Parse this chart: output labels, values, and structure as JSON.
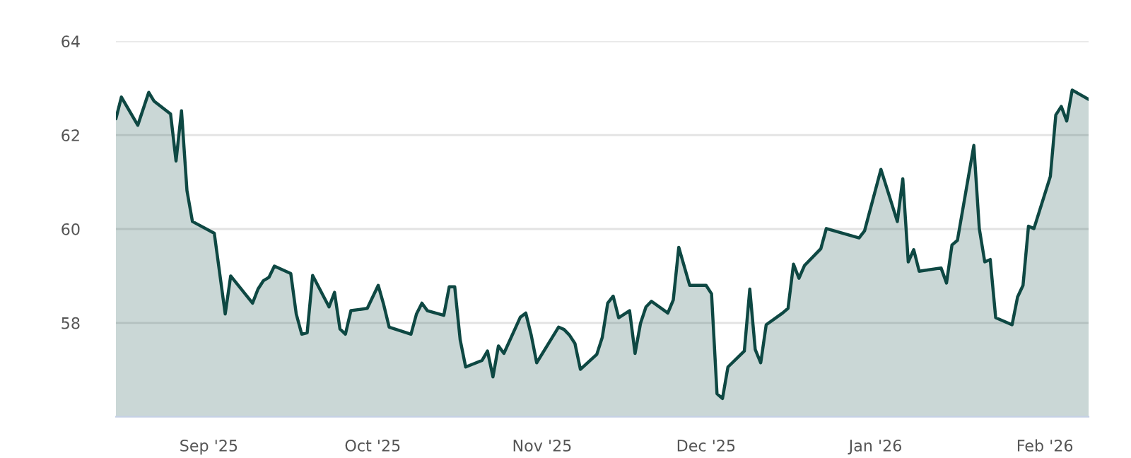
{
  "chart_data": {
    "type": "area",
    "x": [
      "2025-08-15",
      "2025-08-16",
      "2025-08-19",
      "2025-08-21",
      "2025-08-22",
      "2025-08-25",
      "2025-08-26",
      "2025-08-27",
      "2025-08-28",
      "2025-08-29",
      "2025-09-02",
      "2025-09-04",
      "2025-09-05",
      "2025-09-09",
      "2025-09-10",
      "2025-09-11",
      "2025-09-12",
      "2025-09-13",
      "2025-09-16",
      "2025-09-17",
      "2025-09-18",
      "2025-09-19",
      "2025-09-20",
      "2025-09-23",
      "2025-09-24",
      "2025-09-25",
      "2025-09-26",
      "2025-09-27",
      "2025-09-30",
      "2025-10-02",
      "2025-10-03",
      "2025-10-04",
      "2025-10-08",
      "2025-10-09",
      "2025-10-10",
      "2025-10-11",
      "2025-10-14",
      "2025-10-15",
      "2025-10-16",
      "2025-10-17",
      "2025-10-18",
      "2025-10-21",
      "2025-10-22",
      "2025-10-23",
      "2025-10-24",
      "2025-10-25",
      "2025-10-28",
      "2025-10-29",
      "2025-10-30",
      "2025-10-31",
      "2025-11-04",
      "2025-11-05",
      "2025-11-06",
      "2025-11-07",
      "2025-11-08",
      "2025-11-11",
      "2025-11-12",
      "2025-11-13",
      "2025-11-14",
      "2025-11-15",
      "2025-11-17",
      "2025-11-18",
      "2025-11-19",
      "2025-11-20",
      "2025-11-21",
      "2025-11-24",
      "2025-11-25",
      "2025-11-26",
      "2025-11-28",
      "2025-12-01",
      "2025-12-02",
      "2025-12-03",
      "2025-12-04",
      "2025-12-05",
      "2025-12-08",
      "2025-12-09",
      "2025-12-10",
      "2025-12-11",
      "2025-12-12",
      "2025-12-15",
      "2025-12-16",
      "2025-12-17",
      "2025-12-18",
      "2025-12-19",
      "2025-12-22",
      "2025-12-23",
      "2025-12-29",
      "2025-12-30",
      "2026-01-02",
      "2026-01-05",
      "2026-01-06",
      "2026-01-07",
      "2026-01-08",
      "2026-01-09",
      "2026-01-13",
      "2026-01-14",
      "2026-01-15",
      "2026-01-16",
      "2026-01-19",
      "2026-01-20",
      "2026-01-21",
      "2026-01-22",
      "2026-01-23",
      "2026-01-26",
      "2026-01-27",
      "2026-01-28",
      "2026-01-29",
      "2026-01-30",
      "2026-02-02",
      "2026-02-03",
      "2026-02-04",
      "2026-02-05",
      "2026-02-06",
      "2026-02-09"
    ],
    "series": [
      {
        "color": "#0e4843",
        "values": [
          62.35,
          62.81,
          62.21,
          62.91,
          62.72,
          62.45,
          61.45,
          62.52,
          60.82,
          60.16,
          59.91,
          58.19,
          59.0,
          58.42,
          58.72,
          58.9,
          58.97,
          59.21,
          59.05,
          58.19,
          57.76,
          57.79,
          59.01,
          58.34,
          58.65,
          57.87,
          57.76,
          58.26,
          58.31,
          58.8,
          58.39,
          57.91,
          57.76,
          58.19,
          58.42,
          58.26,
          58.16,
          58.77,
          58.77,
          57.64,
          57.06,
          57.2,
          57.4,
          56.85,
          57.51,
          57.35,
          58.12,
          58.21,
          57.74,
          57.15,
          57.91,
          57.86,
          57.74,
          57.56,
          57.01,
          57.33,
          57.69,
          58.42,
          58.57,
          58.11,
          58.26,
          57.35,
          57.99,
          58.34,
          58.46,
          58.21,
          58.49,
          59.61,
          58.8,
          58.8,
          58.62,
          56.49,
          56.39,
          57.06,
          57.4,
          58.72,
          57.43,
          57.15,
          57.96,
          58.21,
          58.31,
          59.25,
          58.95,
          59.22,
          59.58,
          60.01,
          59.81,
          59.96,
          61.27,
          60.16,
          61.07,
          59.3,
          59.56,
          59.1,
          59.17,
          58.85,
          59.66,
          59.76,
          61.78,
          60.01,
          59.3,
          59.35,
          58.11,
          57.96,
          58.55,
          58.8,
          60.06,
          60.01,
          61.12,
          62.43,
          62.61,
          62.3,
          62.96,
          62.76
        ]
      }
    ],
    "xlim": [
      "2025-08-15",
      "2026-02-09"
    ],
    "xticks": [
      {
        "value": "2025-09-01",
        "label": "Sep '25"
      },
      {
        "value": "2025-10-01",
        "label": "Oct '25"
      },
      {
        "value": "2025-11-01",
        "label": "Nov '25"
      },
      {
        "value": "2025-12-01",
        "label": "Dec '25"
      },
      {
        "value": "2026-01-01",
        "label": "Jan '26"
      },
      {
        "value": "2026-02-01",
        "label": "Feb '26"
      }
    ],
    "ylim": [
      56,
      64
    ],
    "yticks": [
      58,
      60,
      62,
      64
    ],
    "grid": "y",
    "legend": false,
    "marker": "none",
    "line_style": "solid"
  }
}
